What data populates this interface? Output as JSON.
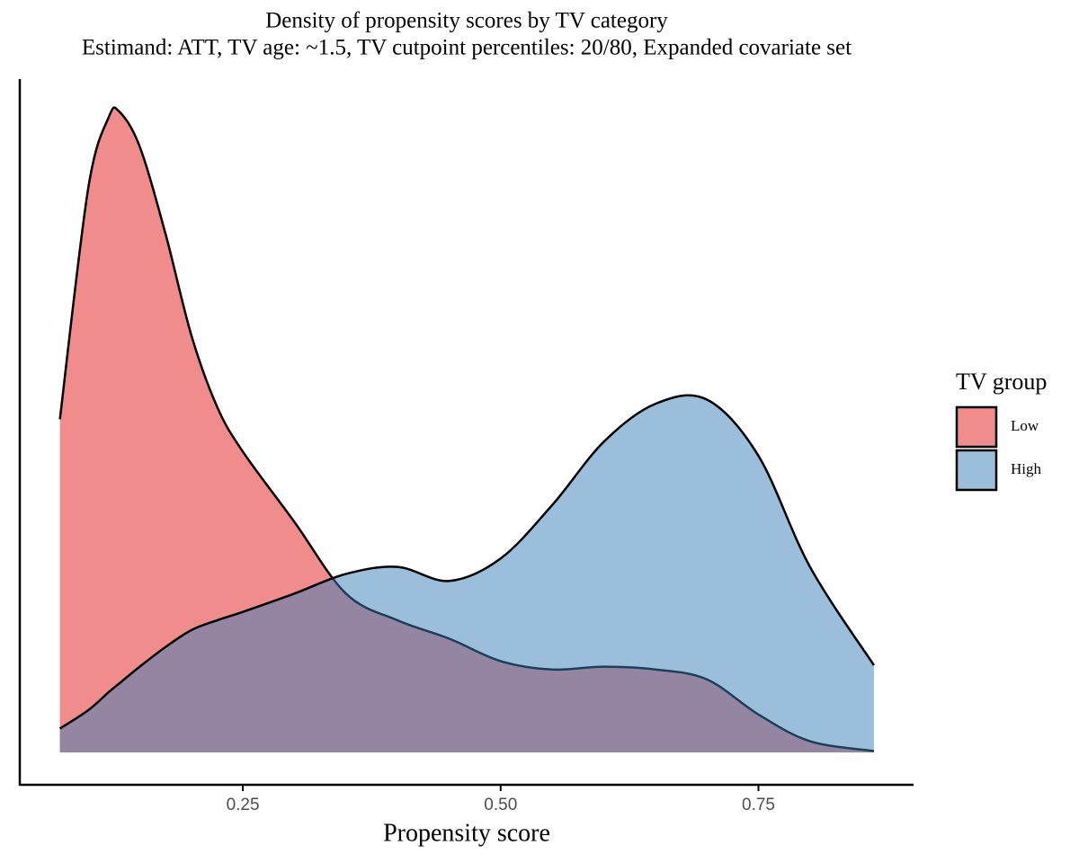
{
  "chart_data": {
    "type": "density",
    "title": "Density of propensity scores by TV category",
    "subtitle": "Estimand: ATT, TV age: ~1.5, TV cutpoint percentiles: 20/80, Expanded covariate set",
    "x_label": "Propensity score",
    "legend_title": "TV group",
    "legend_position": "right",
    "alpha": 0.5,
    "x": [
      0.0726,
      0.1,
      0.12,
      0.13,
      0.15,
      0.175,
      0.2,
      0.225,
      0.25,
      0.3,
      0.35,
      0.4,
      0.45,
      0.5,
      0.55,
      0.6,
      0.65,
      0.7,
      0.75,
      0.8,
      0.862
    ],
    "series": [
      {
        "name": "Low",
        "color": "#E41A1C",
        "values": [
          2.37,
          4.01,
          4.52,
          4.56,
          4.31,
          3.69,
          2.97,
          2.46,
          2.14,
          1.64,
          1.13,
          0.94,
          0.81,
          0.65,
          0.59,
          0.61,
          0.59,
          0.52,
          0.27,
          0.08,
          0.01
        ]
      },
      {
        "name": "High",
        "color": "#377EB8",
        "values": [
          0.17,
          0.3,
          0.43,
          0.49,
          0.61,
          0.75,
          0.87,
          0.94,
          1.0,
          1.13,
          1.27,
          1.32,
          1.22,
          1.38,
          1.76,
          2.21,
          2.48,
          2.51,
          2.11,
          1.32,
          0.62
        ]
      }
    ],
    "xlim": [
      0.0337,
      0.9004
    ],
    "xticks": [
      0.25,
      {
        "value": 0.5,
        "label": "0.50"
      },
      0.75
    ],
    "ylim": [
      -0.23,
      4.79
    ]
  }
}
